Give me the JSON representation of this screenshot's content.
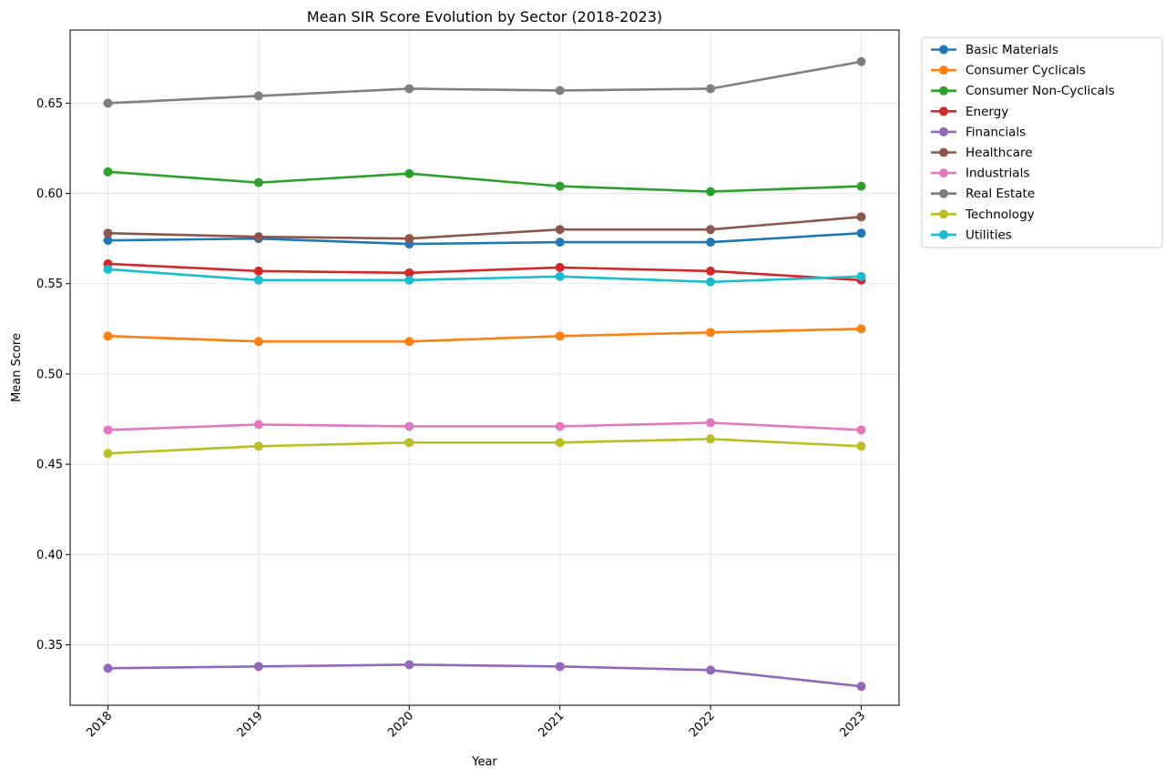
{
  "chart_data": {
    "type": "line",
    "title": "Mean SIR Score Evolution by Sector (2018-2023)",
    "xlabel": "Year",
    "ylabel": "Mean Score",
    "x": [
      "2018",
      "2019",
      "2020",
      "2021",
      "2022",
      "2023"
    ],
    "ylim": [
      0.3165,
      0.6905
    ],
    "yticks": [
      0.35,
      0.4,
      0.45,
      0.5,
      0.55,
      0.6,
      0.65
    ],
    "ytick_labels": [
      "0.35",
      "0.40",
      "0.45",
      "0.50",
      "0.55",
      "0.60",
      "0.65"
    ],
    "grid": true,
    "legend_position": "outside upper right",
    "series": [
      {
        "name": "Basic Materials",
        "color": "#1f77b4",
        "values": [
          0.574,
          0.575,
          0.572,
          0.573,
          0.573,
          0.578
        ]
      },
      {
        "name": "Consumer Cyclicals",
        "color": "#ff7f0e",
        "values": [
          0.521,
          0.518,
          0.518,
          0.521,
          0.523,
          0.525
        ]
      },
      {
        "name": "Consumer Non-Cyclicals",
        "color": "#2ca02c",
        "values": [
          0.612,
          0.606,
          0.611,
          0.604,
          0.601,
          0.604
        ]
      },
      {
        "name": "Energy",
        "color": "#d62728",
        "values": [
          0.561,
          0.557,
          0.556,
          0.559,
          0.557,
          0.552
        ]
      },
      {
        "name": "Financials",
        "color": "#9467bd",
        "values": [
          0.337,
          0.338,
          0.339,
          0.338,
          0.336,
          0.327
        ]
      },
      {
        "name": "Healthcare",
        "color": "#8c564b",
        "values": [
          0.578,
          0.576,
          0.575,
          0.58,
          0.58,
          0.587
        ]
      },
      {
        "name": "Industrials",
        "color": "#e377c2",
        "values": [
          0.469,
          0.472,
          0.471,
          0.471,
          0.473,
          0.469
        ]
      },
      {
        "name": "Real Estate",
        "color": "#7f7f7f",
        "values": [
          0.65,
          0.654,
          0.658,
          0.657,
          0.658,
          0.673
        ]
      },
      {
        "name": "Technology",
        "color": "#bcbd22",
        "values": [
          0.456,
          0.46,
          0.462,
          0.462,
          0.464,
          0.46
        ]
      },
      {
        "name": "Utilities",
        "color": "#17becf",
        "values": [
          0.558,
          0.552,
          0.552,
          0.554,
          0.551,
          0.554
        ]
      }
    ]
  }
}
